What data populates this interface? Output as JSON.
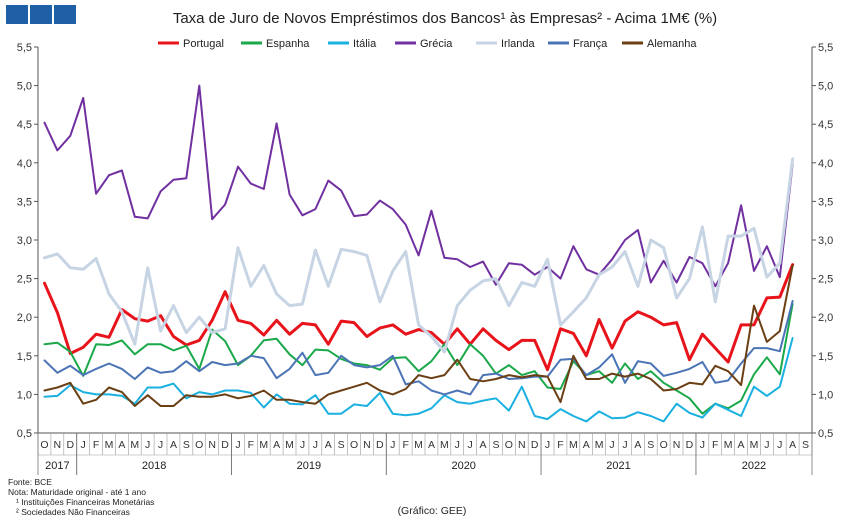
{
  "chart_data": {
    "type": "line",
    "title": "Taxa de Juro de Novos Empréstimos dos Bancos¹ às Empresas² - Acima 1M€ (%)",
    "ylim": [
      0.5,
      5.5
    ],
    "yticks": [
      "0,5",
      "1,0",
      "1,5",
      "2,0",
      "2,5",
      "3,0",
      "3,5",
      "4,0",
      "4,5",
      "5,0",
      "5,5"
    ],
    "month_labels": [
      "O",
      "N",
      "D",
      "J",
      "F",
      "M",
      "A",
      "M",
      "J",
      "J",
      "A",
      "S",
      "O",
      "N",
      "D",
      "J",
      "F",
      "M",
      "A",
      "M",
      "J",
      "J",
      "A",
      "S",
      "O",
      "N",
      "D",
      "J",
      "F",
      "M",
      "A",
      "M",
      "J",
      "J",
      "A",
      "S",
      "O",
      "N",
      "D",
      "J",
      "F",
      "M",
      "A",
      "M",
      "J",
      "J",
      "A",
      "S",
      "O",
      "N",
      "D",
      "J",
      "F",
      "M",
      "A",
      "M",
      "J",
      "J",
      "A",
      "S"
    ],
    "years": [
      {
        "label": "2017",
        "start": 0,
        "end": 2
      },
      {
        "label": "2018",
        "start": 3,
        "end": 14
      },
      {
        "label": "2019",
        "start": 15,
        "end": 26
      },
      {
        "label": "2020",
        "start": 27,
        "end": 38
      },
      {
        "label": "2021",
        "start": 39,
        "end": 50
      },
      {
        "label": "2022",
        "start": 51,
        "end": 59
      }
    ],
    "legend_position": "top",
    "grid": false,
    "series": [
      {
        "name": "Portugal",
        "color": "#e8141b",
        "width": 3,
        "values": [
          2.44,
          2.06,
          1.53,
          1.61,
          1.78,
          1.74,
          2.1,
          1.98,
          1.95,
          2.02,
          1.75,
          1.64,
          1.7,
          1.96,
          2.33,
          1.96,
          1.92,
          1.77,
          1.96,
          1.78,
          1.92,
          1.9,
          1.65,
          1.95,
          1.93,
          1.75,
          1.86,
          1.9,
          1.78,
          1.84,
          1.8,
          1.65,
          1.85,
          1.65,
          1.85,
          1.7,
          1.58,
          1.7,
          1.7,
          1.32,
          1.85,
          1.79,
          1.5,
          1.97,
          1.6,
          1.95,
          2.07,
          2.0,
          1.9,
          1.93,
          1.45,
          1.78,
          1.6,
          1.42,
          1.9,
          1.9,
          2.25,
          2.26,
          2.68
        ]
      },
      {
        "name": "Espanha",
        "color": "#1aa84a",
        "width": 2,
        "values": [
          1.65,
          1.67,
          1.55,
          1.24,
          1.65,
          1.64,
          1.7,
          1.52,
          1.65,
          1.65,
          1.57,
          1.63,
          1.33,
          1.84,
          1.69,
          1.38,
          1.5,
          1.7,
          1.72,
          1.52,
          1.38,
          1.58,
          1.57,
          1.46,
          1.4,
          1.38,
          1.32,
          1.47,
          1.48,
          1.3,
          1.43,
          1.65,
          1.38,
          1.65,
          1.5,
          1.27,
          1.38,
          1.25,
          1.3,
          1.09,
          1.07,
          1.43,
          1.25,
          1.3,
          1.15,
          1.4,
          1.2,
          1.3,
          1.15,
          1.05,
          0.95,
          0.75,
          0.88,
          0.82,
          0.92,
          1.26,
          1.48,
          1.26,
          2.17
        ]
      },
      {
        "name": "Itália",
        "color": "#1ab0e0",
        "width": 2,
        "values": [
          0.97,
          0.98,
          1.12,
          1.03,
          1.0,
          1.0,
          0.98,
          0.88,
          1.09,
          1.09,
          1.14,
          0.95,
          1.03,
          1.0,
          1.05,
          1.05,
          1.02,
          0.83,
          1.0,
          0.88,
          0.87,
          0.99,
          0.75,
          0.75,
          0.87,
          0.85,
          1.02,
          0.75,
          0.73,
          0.75,
          0.82,
          0.99,
          0.9,
          0.88,
          0.92,
          0.95,
          0.79,
          1.1,
          0.72,
          0.68,
          0.81,
          0.72,
          0.65,
          0.78,
          0.69,
          0.7,
          0.77,
          0.72,
          0.65,
          0.88,
          0.76,
          0.7,
          0.88,
          0.8,
          0.72,
          1.1,
          0.98,
          1.1,
          1.73
        ]
      },
      {
        "name": "Grécia",
        "color": "#7030a0",
        "width": 2,
        "values": [
          4.52,
          4.16,
          4.35,
          4.84,
          3.6,
          3.84,
          3.9,
          3.3,
          3.28,
          3.63,
          3.78,
          3.8,
          5.0,
          3.27,
          3.46,
          3.95,
          3.73,
          3.66,
          4.51,
          3.59,
          3.32,
          3.4,
          3.77,
          3.64,
          3.31,
          3.33,
          3.51,
          3.4,
          3.2,
          2.8,
          3.38,
          2.77,
          2.75,
          2.65,
          2.72,
          2.42,
          2.7,
          2.68,
          2.55,
          2.65,
          2.5,
          2.92,
          2.62,
          2.55,
          2.75,
          3.0,
          3.13,
          2.45,
          2.73,
          2.45,
          2.78,
          2.7,
          2.4,
          2.7,
          3.45,
          2.6,
          2.92,
          2.52,
          3.98
        ]
      },
      {
        "name": "Irlanda",
        "color": "#c7d4e3",
        "width": 3,
        "values": [
          2.77,
          2.82,
          2.64,
          2.62,
          2.76,
          2.3,
          2.07,
          1.65,
          2.64,
          1.82,
          2.15,
          1.8,
          2.0,
          1.8,
          1.85,
          2.9,
          2.4,
          2.67,
          2.3,
          2.15,
          2.17,
          2.87,
          2.4,
          2.88,
          2.85,
          2.8,
          2.2,
          2.6,
          2.85,
          1.9,
          1.75,
          1.55,
          2.15,
          2.35,
          2.47,
          2.5,
          2.15,
          2.45,
          2.4,
          2.75,
          1.9,
          2.07,
          2.25,
          2.55,
          2.65,
          2.85,
          2.4,
          3.0,
          2.9,
          2.25,
          2.5,
          3.17,
          2.2,
          3.05,
          3.05,
          3.15,
          2.52,
          2.7,
          4.05
        ]
      },
      {
        "name": "França",
        "color": "#4a74b5",
        "width": 2,
        "values": [
          1.44,
          1.28,
          1.37,
          1.25,
          1.33,
          1.4,
          1.33,
          1.2,
          1.35,
          1.28,
          1.3,
          1.43,
          1.3,
          1.42,
          1.38,
          1.4,
          1.5,
          1.47,
          1.21,
          1.33,
          1.54,
          1.25,
          1.28,
          1.5,
          1.38,
          1.35,
          1.38,
          1.5,
          1.13,
          1.17,
          1.05,
          1.0,
          1.05,
          1.0,
          1.25,
          1.27,
          1.2,
          1.21,
          1.23,
          1.23,
          1.45,
          1.46,
          1.25,
          1.35,
          1.52,
          1.15,
          1.43,
          1.4,
          1.24,
          1.28,
          1.33,
          1.42,
          1.15,
          1.18,
          1.4,
          1.6,
          1.6,
          1.56,
          2.21
        ]
      },
      {
        "name": "Alemanha",
        "color": "#6b3f14",
        "width": 2,
        "values": [
          1.05,
          1.09,
          1.15,
          0.88,
          0.93,
          1.09,
          1.03,
          0.85,
          0.99,
          0.85,
          0.85,
          0.99,
          0.97,
          0.97,
          1.0,
          0.95,
          0.98,
          1.05,
          0.93,
          0.93,
          0.9,
          0.88,
          1.0,
          1.05,
          1.1,
          1.15,
          1.05,
          1.0,
          1.07,
          1.25,
          1.21,
          1.25,
          1.45,
          1.2,
          1.17,
          1.2,
          1.25,
          1.22,
          1.25,
          1.23,
          0.9,
          1.5,
          1.2,
          1.2,
          1.27,
          1.23,
          1.27,
          1.2,
          1.05,
          1.07,
          1.15,
          1.13,
          1.37,
          1.3,
          1.12,
          2.15,
          1.68,
          1.82,
          2.67
        ]
      }
    ],
    "footnotes": {
      "source": "Fonte: BCE",
      "note": "Nota: Maturidade original - até 1 ano",
      "fn1": "¹ Instituições Financeiras Monetárias",
      "fn2": "² Sociedades Não Financeiras"
    },
    "credit": "(Gráfico: GEE)",
    "logo_color": "#1f5fa6"
  }
}
